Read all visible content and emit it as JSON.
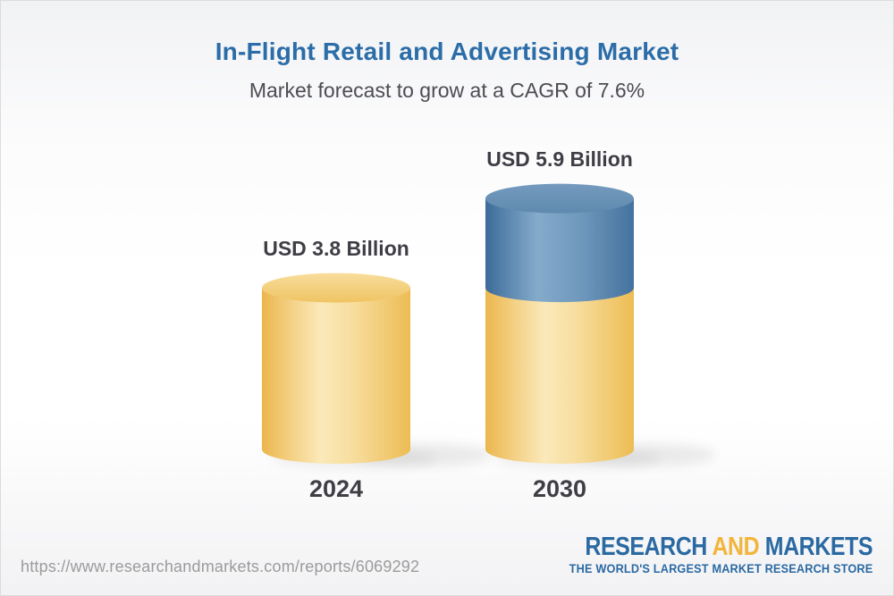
{
  "page": {
    "title": "In-Flight Retail and Advertising Market",
    "subtitle": "Market forecast to grow at a CAGR of 7.6%"
  },
  "chart_data": {
    "type": "bar",
    "variant": "3d-stacked-cylinder",
    "title": "In-Flight Retail and Advertising Market",
    "subtitle": "Market forecast to grow at a CAGR of 7.6%",
    "cagr_percent": 7.6,
    "unit": "USD Billion",
    "categories": [
      "2024",
      "2030"
    ],
    "values": [
      3.8,
      5.9
    ],
    "bars": [
      {
        "category": "2024",
        "label": "USD 3.8 Billion",
        "total": 3.8,
        "segments": [
          {
            "name": "market-size",
            "value": 3.8,
            "color": "yellow"
          }
        ]
      },
      {
        "category": "2030",
        "label": "USD 5.9 Billion",
        "total": 5.9,
        "segments": [
          {
            "name": "base-2024",
            "value": 3.8,
            "color": "yellow"
          },
          {
            "name": "growth",
            "value": 2.1,
            "color": "blue"
          }
        ]
      }
    ],
    "legend": null,
    "grid": false,
    "colors": {
      "yellow_body": [
        [
          0,
          "#ebb64d"
        ],
        [
          0.2,
          "#f4d186"
        ],
        [
          0.4,
          "#fbe9b9"
        ],
        [
          0.62,
          "#f7dd9d"
        ],
        [
          1,
          "#edbc53"
        ]
      ],
      "yellow_top": [
        [
          0,
          "#f8dd9c"
        ],
        [
          1,
          "#efc463"
        ]
      ],
      "blue_body": [
        [
          0,
          "#3c6b99"
        ],
        [
          0.35,
          "#85abcb"
        ],
        [
          0.65,
          "#6e97bb"
        ],
        [
          1,
          "#44739f"
        ]
      ],
      "blue_top": [
        [
          0,
          "#749bbe"
        ],
        [
          1,
          "#6089af"
        ]
      ]
    }
  },
  "footer": {
    "url": "https://www.researchandmarkets.com/reports/6069292",
    "logo": {
      "word1": "RESEARCH",
      "word2": "AND",
      "word3": "MARKETS",
      "tagline": "THE WORLD'S LARGEST MARKET RESEARCH STORE"
    }
  }
}
